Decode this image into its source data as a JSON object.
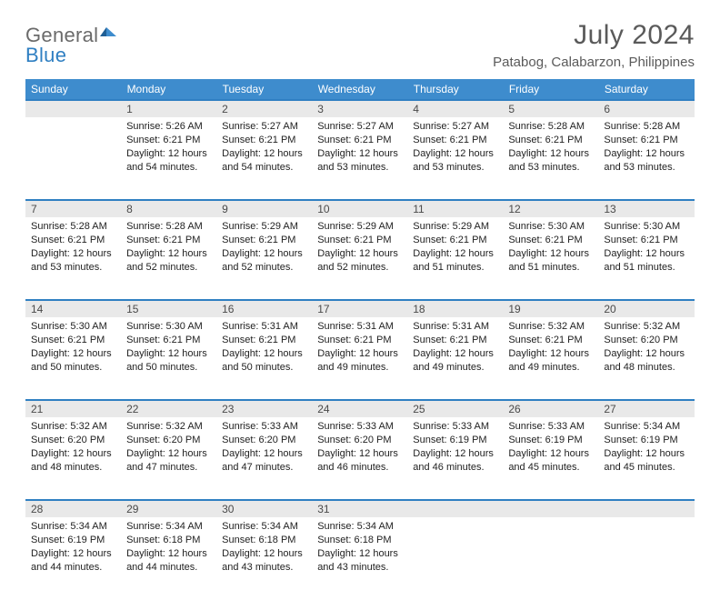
{
  "brand": {
    "word1": "General",
    "word2": "Blue"
  },
  "title": "July 2024",
  "location": "Patabog, Calabarzon, Philippines",
  "colors": {
    "header_bg": "#3e8ccd",
    "header_text": "#ffffff",
    "daynum_bg": "#e9e9e9",
    "daynum_border": "#2f7fc2",
    "text": "#222222",
    "logo_gray": "#6a6a6a",
    "logo_blue": "#2f7fc2"
  },
  "weekdays": [
    "Sunday",
    "Monday",
    "Tuesday",
    "Wednesday",
    "Thursday",
    "Friday",
    "Saturday"
  ],
  "weeks": [
    [
      {
        "empty": true
      },
      {
        "n": "1",
        "lines": [
          "Sunrise: 5:26 AM",
          "Sunset: 6:21 PM",
          "Daylight: 12 hours",
          "and 54 minutes."
        ]
      },
      {
        "n": "2",
        "lines": [
          "Sunrise: 5:27 AM",
          "Sunset: 6:21 PM",
          "Daylight: 12 hours",
          "and 54 minutes."
        ]
      },
      {
        "n": "3",
        "lines": [
          "Sunrise: 5:27 AM",
          "Sunset: 6:21 PM",
          "Daylight: 12 hours",
          "and 53 minutes."
        ]
      },
      {
        "n": "4",
        "lines": [
          "Sunrise: 5:27 AM",
          "Sunset: 6:21 PM",
          "Daylight: 12 hours",
          "and 53 minutes."
        ]
      },
      {
        "n": "5",
        "lines": [
          "Sunrise: 5:28 AM",
          "Sunset: 6:21 PM",
          "Daylight: 12 hours",
          "and 53 minutes."
        ]
      },
      {
        "n": "6",
        "lines": [
          "Sunrise: 5:28 AM",
          "Sunset: 6:21 PM",
          "Daylight: 12 hours",
          "and 53 minutes."
        ]
      }
    ],
    [
      {
        "n": "7",
        "lines": [
          "Sunrise: 5:28 AM",
          "Sunset: 6:21 PM",
          "Daylight: 12 hours",
          "and 53 minutes."
        ]
      },
      {
        "n": "8",
        "lines": [
          "Sunrise: 5:28 AM",
          "Sunset: 6:21 PM",
          "Daylight: 12 hours",
          "and 52 minutes."
        ]
      },
      {
        "n": "9",
        "lines": [
          "Sunrise: 5:29 AM",
          "Sunset: 6:21 PM",
          "Daylight: 12 hours",
          "and 52 minutes."
        ]
      },
      {
        "n": "10",
        "lines": [
          "Sunrise: 5:29 AM",
          "Sunset: 6:21 PM",
          "Daylight: 12 hours",
          "and 52 minutes."
        ]
      },
      {
        "n": "11",
        "lines": [
          "Sunrise: 5:29 AM",
          "Sunset: 6:21 PM",
          "Daylight: 12 hours",
          "and 51 minutes."
        ]
      },
      {
        "n": "12",
        "lines": [
          "Sunrise: 5:30 AM",
          "Sunset: 6:21 PM",
          "Daylight: 12 hours",
          "and 51 minutes."
        ]
      },
      {
        "n": "13",
        "lines": [
          "Sunrise: 5:30 AM",
          "Sunset: 6:21 PM",
          "Daylight: 12 hours",
          "and 51 minutes."
        ]
      }
    ],
    [
      {
        "n": "14",
        "lines": [
          "Sunrise: 5:30 AM",
          "Sunset: 6:21 PM",
          "Daylight: 12 hours",
          "and 50 minutes."
        ]
      },
      {
        "n": "15",
        "lines": [
          "Sunrise: 5:30 AM",
          "Sunset: 6:21 PM",
          "Daylight: 12 hours",
          "and 50 minutes."
        ]
      },
      {
        "n": "16",
        "lines": [
          "Sunrise: 5:31 AM",
          "Sunset: 6:21 PM",
          "Daylight: 12 hours",
          "and 50 minutes."
        ]
      },
      {
        "n": "17",
        "lines": [
          "Sunrise: 5:31 AM",
          "Sunset: 6:21 PM",
          "Daylight: 12 hours",
          "and 49 minutes."
        ]
      },
      {
        "n": "18",
        "lines": [
          "Sunrise: 5:31 AM",
          "Sunset: 6:21 PM",
          "Daylight: 12 hours",
          "and 49 minutes."
        ]
      },
      {
        "n": "19",
        "lines": [
          "Sunrise: 5:32 AM",
          "Sunset: 6:21 PM",
          "Daylight: 12 hours",
          "and 49 minutes."
        ]
      },
      {
        "n": "20",
        "lines": [
          "Sunrise: 5:32 AM",
          "Sunset: 6:20 PM",
          "Daylight: 12 hours",
          "and 48 minutes."
        ]
      }
    ],
    [
      {
        "n": "21",
        "lines": [
          "Sunrise: 5:32 AM",
          "Sunset: 6:20 PM",
          "Daylight: 12 hours",
          "and 48 minutes."
        ]
      },
      {
        "n": "22",
        "lines": [
          "Sunrise: 5:32 AM",
          "Sunset: 6:20 PM",
          "Daylight: 12 hours",
          "and 47 minutes."
        ]
      },
      {
        "n": "23",
        "lines": [
          "Sunrise: 5:33 AM",
          "Sunset: 6:20 PM",
          "Daylight: 12 hours",
          "and 47 minutes."
        ]
      },
      {
        "n": "24",
        "lines": [
          "Sunrise: 5:33 AM",
          "Sunset: 6:20 PM",
          "Daylight: 12 hours",
          "and 46 minutes."
        ]
      },
      {
        "n": "25",
        "lines": [
          "Sunrise: 5:33 AM",
          "Sunset: 6:19 PM",
          "Daylight: 12 hours",
          "and 46 minutes."
        ]
      },
      {
        "n": "26",
        "lines": [
          "Sunrise: 5:33 AM",
          "Sunset: 6:19 PM",
          "Daylight: 12 hours",
          "and 45 minutes."
        ]
      },
      {
        "n": "27",
        "lines": [
          "Sunrise: 5:34 AM",
          "Sunset: 6:19 PM",
          "Daylight: 12 hours",
          "and 45 minutes."
        ]
      }
    ],
    [
      {
        "n": "28",
        "lines": [
          "Sunrise: 5:34 AM",
          "Sunset: 6:19 PM",
          "Daylight: 12 hours",
          "and 44 minutes."
        ]
      },
      {
        "n": "29",
        "lines": [
          "Sunrise: 5:34 AM",
          "Sunset: 6:18 PM",
          "Daylight: 12 hours",
          "and 44 minutes."
        ]
      },
      {
        "n": "30",
        "lines": [
          "Sunrise: 5:34 AM",
          "Sunset: 6:18 PM",
          "Daylight: 12 hours",
          "and 43 minutes."
        ]
      },
      {
        "n": "31",
        "lines": [
          "Sunrise: 5:34 AM",
          "Sunset: 6:18 PM",
          "Daylight: 12 hours",
          "and 43 minutes."
        ]
      },
      {
        "empty": true
      },
      {
        "empty": true
      },
      {
        "empty": true
      }
    ]
  ]
}
